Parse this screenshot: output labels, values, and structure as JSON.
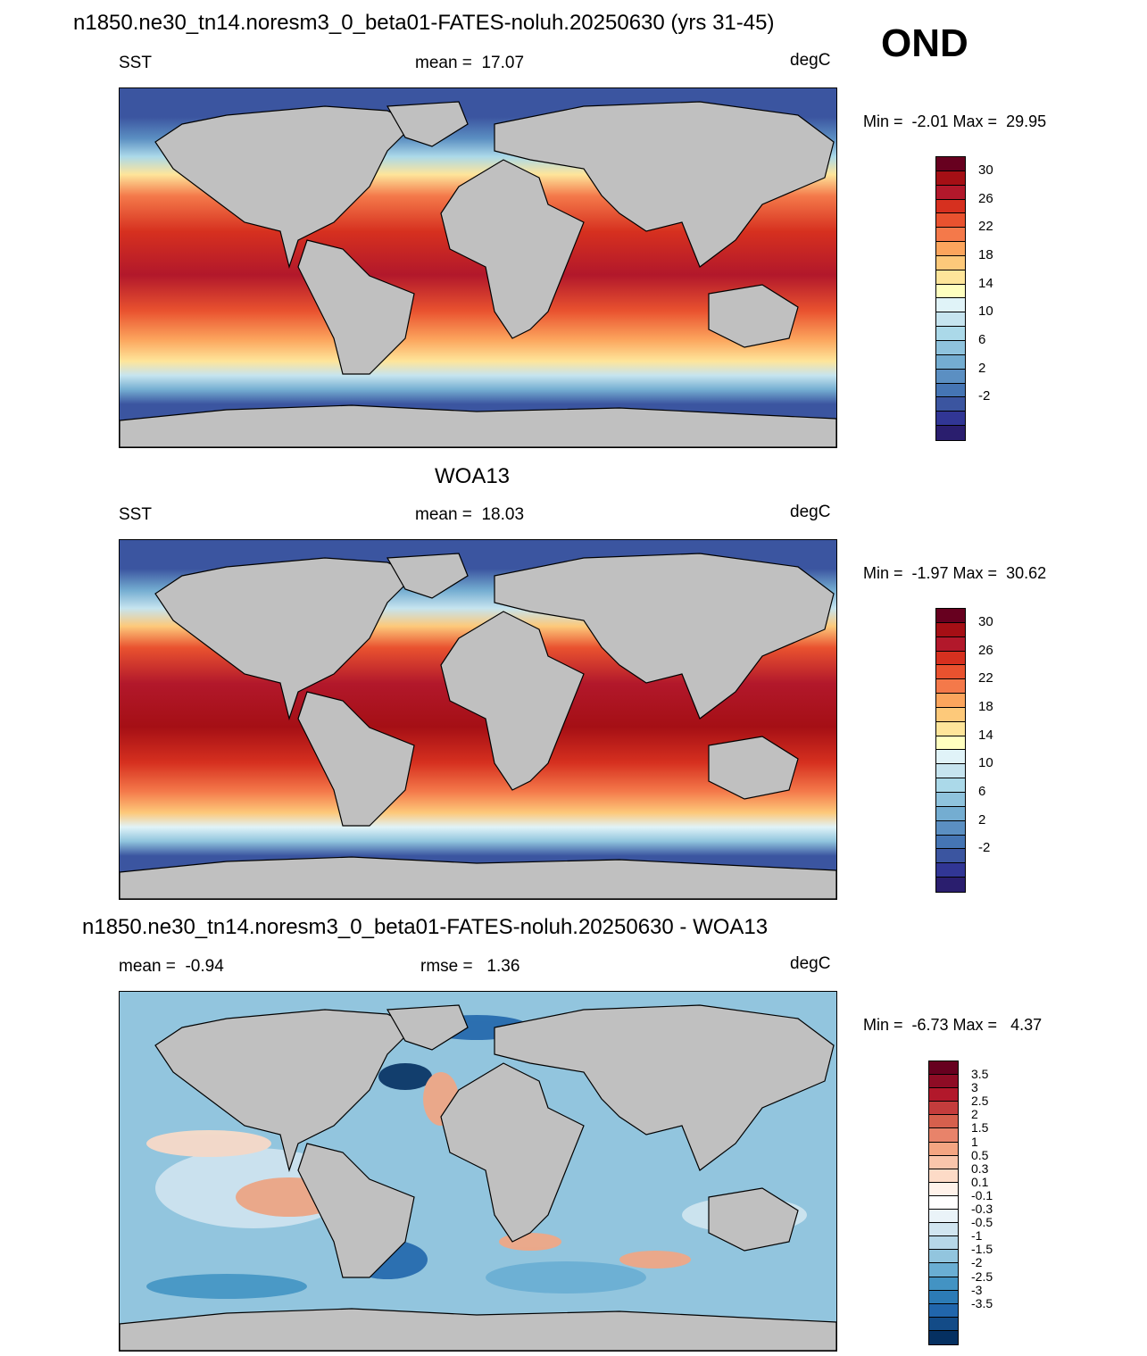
{
  "header": {
    "title": "n1850.ne30_tn14.noresm3_0_beta01-FATES-noluh.20250630 (yrs 31-45)",
    "season": "OND"
  },
  "panels": [
    {
      "title": "",
      "left_label": "SST",
      "center_label": "mean =  17.07",
      "unit": "degC",
      "minmax": "Min =  -2.01 Max =  29.95",
      "colorbar": {
        "labels": [
          "30",
          "26",
          "22",
          "18",
          "14",
          "10",
          "6",
          "2",
          "-2"
        ],
        "colors": [
          "#67001f",
          "#a50f15",
          "#b2182b",
          "#d6301f",
          "#e9522f",
          "#f4794a",
          "#fca55d",
          "#fdc97a",
          "#fee59a",
          "#ffffbf",
          "#e0f3f8",
          "#c6e4ef",
          "#abd9e9",
          "#8fc3dd",
          "#74add1",
          "#5b8fc2",
          "#4575b4",
          "#3b55a0",
          "#313695",
          "#2a1e6e"
        ]
      }
    },
    {
      "title": "WOA13",
      "left_label": "SST",
      "center_label": "mean =  18.03",
      "unit": "degC",
      "minmax": "Min =  -1.97 Max =  30.62",
      "colorbar": {
        "labels": [
          "30",
          "26",
          "22",
          "18",
          "14",
          "10",
          "6",
          "2",
          "-2"
        ],
        "colors": [
          "#67001f",
          "#a50f15",
          "#b2182b",
          "#d6301f",
          "#e9522f",
          "#f4794a",
          "#fca55d",
          "#fdc97a",
          "#fee59a",
          "#ffffbf",
          "#e0f3f8",
          "#c6e4ef",
          "#abd9e9",
          "#8fc3dd",
          "#74add1",
          "#5b8fc2",
          "#4575b4",
          "#3b55a0",
          "#313695",
          "#2a1e6e"
        ]
      }
    },
    {
      "title": "n1850.ne30_tn14.noresm3_0_beta01-FATES-noluh.20250630 - WOA13",
      "left_label": "mean =  -0.94",
      "center_label": "rmse =   1.36",
      "unit": "degC",
      "minmax": "Min =  -6.73 Max =   4.37",
      "colorbar": {
        "labels": [
          "3.5",
          "3",
          "2.5",
          "2",
          "1.5",
          "1",
          "0.5",
          "0.3",
          "0.1",
          "-0.1",
          "-0.3",
          "-0.5",
          "-1",
          "-1.5",
          "-2",
          "-2.5",
          "-3",
          "-3.5"
        ],
        "colors": [
          "#67001f",
          "#8e0c25",
          "#b2182b",
          "#c43c3c",
          "#d6604d",
          "#e8836a",
          "#f4a582",
          "#f9c5ab",
          "#fddbc7",
          "#fff2ea",
          "#ffffff",
          "#eaf3f8",
          "#d1e5f0",
          "#b6d7e8",
          "#92c5de",
          "#6aaed3",
          "#4393c3",
          "#2c7bb6",
          "#2166ac",
          "#134b87",
          "#053061"
        ]
      }
    }
  ]
}
